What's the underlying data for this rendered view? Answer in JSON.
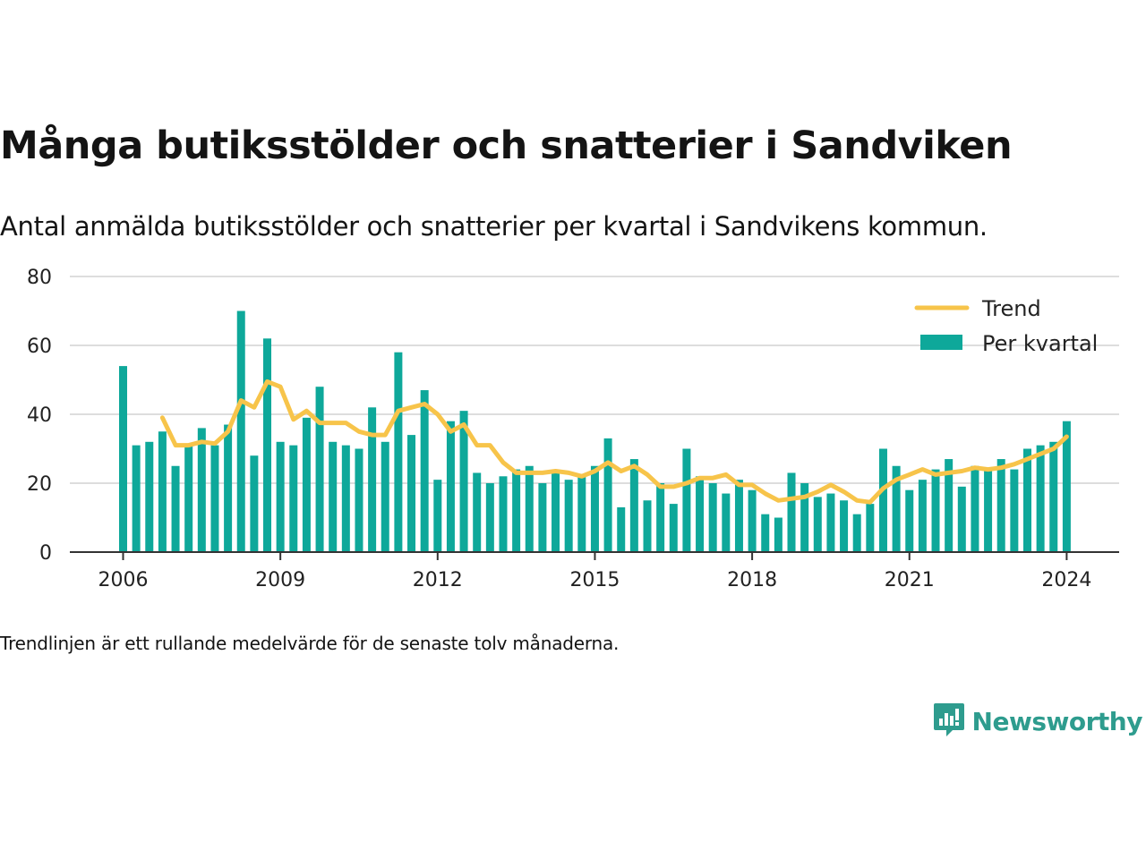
{
  "title": "Många butiksstölder och snatterier i Sandviken",
  "subtitle": "Antal anmälda butiksstölder och snatterier per kvartal i Sandvikens kommun.",
  "note": "Trendlinjen är ett rullande medelvärde för de senaste tolv månaderna.",
  "brand": {
    "name": "Newsworthy",
    "icon": "newsworthy-logo-icon",
    "color": "#2e9c8e"
  },
  "colors": {
    "bars": "#0ea89a",
    "trend": "#f7c44a",
    "grid": "#dddddd",
    "axis": "#333333"
  },
  "chart_data": {
    "type": "bar",
    "title": "",
    "xlabel": "",
    "ylabel": "",
    "ylim": [
      0,
      80
    ],
    "yticks": [
      "0",
      "20",
      "40",
      "60",
      "80"
    ],
    "xticks": [
      "2006",
      "2009",
      "2012",
      "2015",
      "2018",
      "2021",
      "2024"
    ],
    "grid": true,
    "legend_position": "top-right",
    "categories": [
      "2006 Q1",
      "2006 Q2",
      "2006 Q3",
      "2006 Q4",
      "2007 Q1",
      "2007 Q2",
      "2007 Q3",
      "2007 Q4",
      "2008 Q1",
      "2008 Q2",
      "2008 Q3",
      "2008 Q4",
      "2009 Q1",
      "2009 Q2",
      "2009 Q3",
      "2009 Q4",
      "2010 Q1",
      "2010 Q2",
      "2010 Q3",
      "2010 Q4",
      "2011 Q1",
      "2011 Q2",
      "2011 Q3",
      "2011 Q4",
      "2012 Q1",
      "2012 Q2",
      "2012 Q3",
      "2012 Q4",
      "2013 Q1",
      "2013 Q2",
      "2013 Q3",
      "2013 Q4",
      "2014 Q1",
      "2014 Q2",
      "2014 Q3",
      "2014 Q4",
      "2015 Q1",
      "2015 Q2",
      "2015 Q3",
      "2015 Q4",
      "2016 Q1",
      "2016 Q2",
      "2016 Q3",
      "2016 Q4",
      "2017 Q1",
      "2017 Q2",
      "2017 Q3",
      "2017 Q4",
      "2018 Q1",
      "2018 Q2",
      "2018 Q3",
      "2018 Q4",
      "2019 Q1",
      "2019 Q2",
      "2019 Q3",
      "2019 Q4",
      "2020 Q1",
      "2020 Q2",
      "2020 Q3",
      "2020 Q4",
      "2021 Q1",
      "2021 Q2",
      "2021 Q3",
      "2021 Q4",
      "2022 Q1",
      "2022 Q2",
      "2022 Q3",
      "2022 Q4",
      "2023 Q1",
      "2023 Q2",
      "2023 Q3",
      "2023 Q4",
      "2024 Q1"
    ],
    "series": [
      {
        "name": "Per kvartal",
        "kind": "bar",
        "values": [
          54,
          31,
          32,
          35,
          25,
          31,
          36,
          31,
          37,
          70,
          28,
          62,
          32,
          31,
          39,
          48,
          32,
          31,
          30,
          42,
          32,
          58,
          34,
          47,
          21,
          38,
          41,
          23,
          20,
          22,
          24,
          25,
          20,
          23,
          21,
          22,
          25,
          33,
          13,
          27,
          15,
          20,
          14,
          30,
          22,
          20,
          17,
          21,
          18,
          11,
          10,
          23,
          20,
          16,
          17,
          15,
          11,
          14,
          30,
          25,
          18,
          21,
          24,
          27,
          19,
          25,
          24,
          27,
          24,
          30,
          31,
          32,
          38
        ]
      },
      {
        "name": "Trend",
        "kind": "line",
        "values": [
          null,
          null,
          null,
          39,
          31,
          31,
          32,
          31.5,
          35,
          44,
          42,
          49.5,
          48,
          38.5,
          41,
          37.5,
          37.5,
          37.5,
          35,
          34,
          34,
          41,
          42,
          43,
          40,
          35,
          37,
          31,
          31,
          26,
          23,
          23,
          23,
          23.5,
          23,
          22,
          23.5,
          26,
          23.5,
          25,
          22.5,
          19,
          19,
          20,
          21.5,
          21.5,
          22.5,
          19.5,
          19.5,
          17,
          15,
          15.5,
          16,
          17.5,
          19.5,
          17.5,
          15,
          14.5,
          18.5,
          21,
          22.5,
          24,
          22.5,
          23,
          23.5,
          24.5,
          24,
          24.5,
          25.5,
          27,
          28.5,
          30,
          33.5
        ]
      }
    ]
  }
}
